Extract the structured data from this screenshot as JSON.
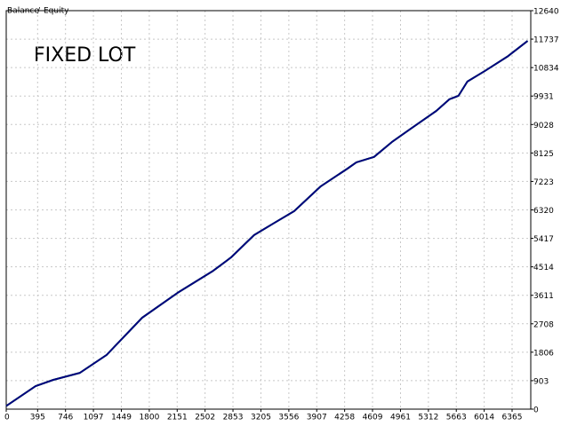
{
  "chart_data": {
    "type": "line",
    "legend": [
      "Balance",
      "/",
      "Equity"
    ],
    "annotation": "FIXED LOT",
    "annotation_color": "#ff0000",
    "x": [
      0,
      369,
      593,
      927,
      1263,
      1710,
      2157,
      2604,
      2828,
      3119,
      3343,
      3623,
      3958,
      4293,
      4405,
      4628,
      4852,
      5075,
      5411,
      5578,
      5690,
      5802,
      6025,
      6304,
      6561
    ],
    "series": [
      {
        "name": "Equity",
        "color": "#00a000",
        "values": [
          100,
          730,
          930,
          1150,
          1720,
          2900,
          3690,
          4390,
          4810,
          5520,
          5860,
          6280,
          7070,
          7630,
          7830,
          8000,
          8470,
          8870,
          9460,
          9830,
          9940,
          10390,
          10730,
          11180,
          11680
        ]
      },
      {
        "name": "Balance",
        "color": "#000080",
        "values": [
          100,
          730,
          930,
          1150,
          1720,
          2900,
          3690,
          4390,
          4810,
          5520,
          5860,
          6280,
          7070,
          7630,
          7830,
          8000,
          8470,
          8870,
          9460,
          9830,
          9940,
          10390,
          10730,
          11180,
          11680
        ]
      }
    ],
    "xlim": [
      0,
      6600
    ],
    "xticks": [
      0,
      395,
      746,
      1097,
      1449,
      1800,
      2151,
      2502,
      2853,
      3205,
      3556,
      3907,
      4258,
      4609,
      4961,
      5312,
      5663,
      6014,
      6365
    ],
    "ylim": [
      0,
      12640
    ],
    "yticks": [
      0,
      903,
      1806,
      2708,
      3611,
      4514,
      5417,
      6320,
      7223,
      8125,
      9028,
      9931,
      10834,
      11737,
      12640
    ],
    "grid": true
  }
}
